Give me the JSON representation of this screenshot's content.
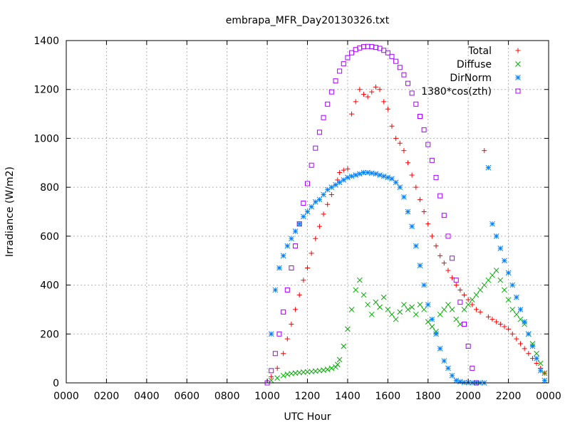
{
  "chart_data": {
    "type": "scatter",
    "title": "embrapa_MFR_Day20130326.txt",
    "xlabel": "UTC Hour",
    "ylabel": "Irradiance (W/m2)",
    "xlim": [
      0,
      24
    ],
    "ylim": [
      0,
      1400
    ],
    "x_ticks": [
      {
        "value": 0,
        "label": "0000"
      },
      {
        "value": 2,
        "label": "0200"
      },
      {
        "value": 4,
        "label": "0400"
      },
      {
        "value": 6,
        "label": "0600"
      },
      {
        "value": 8,
        "label": "0800"
      },
      {
        "value": 10,
        "label": "1000"
      },
      {
        "value": 12,
        "label": "1200"
      },
      {
        "value": 14,
        "label": "1400"
      },
      {
        "value": 16,
        "label": "1600"
      },
      {
        "value": 18,
        "label": "1800"
      },
      {
        "value": 20,
        "label": "2000"
      },
      {
        "value": 22,
        "label": "2200"
      },
      {
        "value": 24,
        "label": "0000"
      }
    ],
    "y_ticks": [
      0,
      200,
      400,
      600,
      800,
      1000,
      1200,
      1400
    ],
    "grid": true,
    "legend_position": "top-right",
    "series": [
      {
        "name": "Total",
        "marker": "plus",
        "color": "#ff0000",
        "points": [
          [
            10.2,
            25
          ],
          [
            10.5,
            60
          ],
          [
            10.8,
            120
          ],
          [
            11.0,
            180
          ],
          [
            11.2,
            240
          ],
          [
            11.4,
            300
          ],
          [
            11.6,
            360
          ],
          [
            11.8,
            420
          ],
          [
            12.0,
            470
          ],
          [
            12.2,
            530
          ],
          [
            12.4,
            590
          ],
          [
            12.6,
            640
          ],
          [
            12.8,
            690
          ],
          [
            13.0,
            730
          ],
          [
            13.2,
            770
          ],
          [
            13.4,
            810
          ],
          [
            13.5,
            830
          ],
          [
            13.6,
            860
          ],
          [
            13.8,
            870
          ],
          [
            14.0,
            875
          ],
          [
            14.2,
            1100
          ],
          [
            14.4,
            1150
          ],
          [
            14.6,
            1200
          ],
          [
            14.8,
            1180
          ],
          [
            15.0,
            1170
          ],
          [
            15.2,
            1190
          ],
          [
            15.4,
            1210
          ],
          [
            15.6,
            1200
          ],
          [
            15.8,
            1150
          ],
          [
            16.0,
            1120
          ],
          [
            16.2,
            1050
          ],
          [
            16.4,
            1000
          ],
          [
            16.6,
            980
          ],
          [
            16.8,
            950
          ],
          [
            17.0,
            900
          ],
          [
            17.2,
            850
          ],
          [
            17.4,
            800
          ],
          [
            17.6,
            750
          ],
          [
            17.8,
            700
          ],
          [
            18.0,
            650
          ],
          [
            18.2,
            600
          ],
          [
            18.4,
            560
          ],
          [
            18.6,
            520
          ],
          [
            18.8,
            490
          ],
          [
            19.0,
            460
          ],
          [
            19.2,
            430
          ],
          [
            19.4,
            400
          ],
          [
            19.6,
            380
          ],
          [
            19.8,
            360
          ],
          [
            20.0,
            340
          ],
          [
            20.2,
            320
          ],
          [
            20.4,
            300
          ],
          [
            20.6,
            290
          ],
          [
            20.8,
            950
          ],
          [
            21.0,
            270
          ],
          [
            21.2,
            260
          ],
          [
            21.4,
            250
          ],
          [
            21.6,
            240
          ],
          [
            21.8,
            230
          ],
          [
            22.0,
            220
          ],
          [
            22.2,
            200
          ],
          [
            22.4,
            180
          ],
          [
            22.6,
            160
          ],
          [
            22.8,
            140
          ],
          [
            23.0,
            120
          ],
          [
            23.2,
            100
          ],
          [
            23.4,
            80
          ],
          [
            23.6,
            60
          ],
          [
            23.8,
            40
          ]
        ]
      },
      {
        "name": "Diffuse",
        "marker": "cross",
        "color": "#00aa00",
        "points": [
          [
            10.2,
            10
          ],
          [
            10.5,
            20
          ],
          [
            10.8,
            30
          ],
          [
            11.0,
            35
          ],
          [
            11.2,
            38
          ],
          [
            11.4,
            40
          ],
          [
            11.6,
            42
          ],
          [
            11.8,
            44
          ],
          [
            12.0,
            45
          ],
          [
            12.2,
            46
          ],
          [
            12.4,
            48
          ],
          [
            12.6,
            50
          ],
          [
            12.8,
            52
          ],
          [
            13.0,
            55
          ],
          [
            13.2,
            60
          ],
          [
            13.4,
            65
          ],
          [
            13.5,
            75
          ],
          [
            13.6,
            95
          ],
          [
            13.8,
            150
          ],
          [
            14.0,
            220
          ],
          [
            14.2,
            300
          ],
          [
            14.4,
            380
          ],
          [
            14.6,
            420
          ],
          [
            14.8,
            360
          ],
          [
            15.0,
            320
          ],
          [
            15.2,
            280
          ],
          [
            15.4,
            330
          ],
          [
            15.6,
            310
          ],
          [
            15.8,
            350
          ],
          [
            16.0,
            300
          ],
          [
            16.2,
            280
          ],
          [
            16.4,
            260
          ],
          [
            16.6,
            290
          ],
          [
            16.8,
            320
          ],
          [
            17.0,
            300
          ],
          [
            17.2,
            310
          ],
          [
            17.4,
            280
          ],
          [
            17.6,
            320
          ],
          [
            17.8,
            300
          ],
          [
            18.0,
            250
          ],
          [
            18.2,
            230
          ],
          [
            18.4,
            210
          ],
          [
            18.6,
            280
          ],
          [
            18.8,
            300
          ],
          [
            19.0,
            320
          ],
          [
            19.2,
            300
          ],
          [
            19.4,
            260
          ],
          [
            19.6,
            240
          ],
          [
            19.8,
            300
          ],
          [
            20.0,
            320
          ],
          [
            20.2,
            340
          ],
          [
            20.4,
            360
          ],
          [
            20.6,
            380
          ],
          [
            20.8,
            400
          ],
          [
            21.0,
            420
          ],
          [
            21.2,
            440
          ],
          [
            21.4,
            460
          ],
          [
            21.6,
            420
          ],
          [
            21.8,
            380
          ],
          [
            22.0,
            340
          ],
          [
            22.2,
            300
          ],
          [
            22.4,
            280
          ],
          [
            22.6,
            260
          ],
          [
            22.8,
            240
          ],
          [
            23.0,
            200
          ],
          [
            23.2,
            160
          ],
          [
            23.4,
            120
          ],
          [
            23.6,
            80
          ],
          [
            23.8,
            40
          ]
        ]
      },
      {
        "name": "DirNorm",
        "marker": "star",
        "color": "#0080ff",
        "points": [
          [
            10.2,
            200
          ],
          [
            10.4,
            380
          ],
          [
            10.6,
            470
          ],
          [
            10.8,
            520
          ],
          [
            11.0,
            560
          ],
          [
            11.2,
            590
          ],
          [
            11.4,
            620
          ],
          [
            11.6,
            650
          ],
          [
            11.8,
            680
          ],
          [
            12.0,
            700
          ],
          [
            12.2,
            720
          ],
          [
            12.4,
            740
          ],
          [
            12.6,
            750
          ],
          [
            12.8,
            770
          ],
          [
            13.0,
            790
          ],
          [
            13.2,
            800
          ],
          [
            13.4,
            810
          ],
          [
            13.6,
            820
          ],
          [
            13.8,
            830
          ],
          [
            14.0,
            840
          ],
          [
            14.2,
            845
          ],
          [
            14.4,
            850
          ],
          [
            14.6,
            855
          ],
          [
            14.8,
            860
          ],
          [
            15.0,
            860
          ],
          [
            15.2,
            858
          ],
          [
            15.4,
            855
          ],
          [
            15.6,
            850
          ],
          [
            15.8,
            845
          ],
          [
            16.0,
            840
          ],
          [
            16.2,
            835
          ],
          [
            16.4,
            820
          ],
          [
            16.6,
            800
          ],
          [
            16.8,
            760
          ],
          [
            17.0,
            700
          ],
          [
            17.2,
            640
          ],
          [
            17.4,
            560
          ],
          [
            17.6,
            480
          ],
          [
            17.8,
            400
          ],
          [
            18.0,
            320
          ],
          [
            18.2,
            260
          ],
          [
            18.4,
            200
          ],
          [
            18.6,
            140
          ],
          [
            18.8,
            90
          ],
          [
            19.0,
            60
          ],
          [
            19.2,
            30
          ],
          [
            19.4,
            10
          ],
          [
            19.6,
            5
          ],
          [
            19.8,
            2
          ],
          [
            20.0,
            1
          ],
          [
            20.2,
            0.5
          ],
          [
            20.4,
            0.3
          ],
          [
            20.6,
            0.2
          ],
          [
            20.8,
            0.1
          ],
          [
            21.0,
            880
          ],
          [
            21.2,
            650
          ],
          [
            21.4,
            600
          ],
          [
            21.6,
            550
          ],
          [
            21.8,
            500
          ],
          [
            22.0,
            450
          ],
          [
            22.2,
            400
          ],
          [
            22.4,
            350
          ],
          [
            22.6,
            300
          ],
          [
            22.8,
            250
          ],
          [
            23.0,
            200
          ],
          [
            23.2,
            150
          ],
          [
            23.4,
            100
          ],
          [
            23.6,
            50
          ],
          [
            23.8,
            10
          ]
        ]
      },
      {
        "name": "1380*cos(zth)",
        "marker": "square",
        "color": "#aa00ff",
        "points": [
          [
            10.0,
            0
          ],
          [
            10.2,
            50
          ],
          [
            10.4,
            120
          ],
          [
            10.6,
            200
          ],
          [
            10.8,
            290
          ],
          [
            11.0,
            380
          ],
          [
            11.2,
            470
          ],
          [
            11.4,
            560
          ],
          [
            11.6,
            650
          ],
          [
            11.8,
            735
          ],
          [
            12.0,
            815
          ],
          [
            12.2,
            890
          ],
          [
            12.4,
            960
          ],
          [
            12.6,
            1025
          ],
          [
            12.8,
            1085
          ],
          [
            13.0,
            1140
          ],
          [
            13.2,
            1190
          ],
          [
            13.4,
            1235
          ],
          [
            13.6,
            1275
          ],
          [
            13.8,
            1305
          ],
          [
            14.0,
            1330
          ],
          [
            14.2,
            1350
          ],
          [
            14.4,
            1363
          ],
          [
            14.6,
            1370
          ],
          [
            14.8,
            1375
          ],
          [
            15.0,
            1376
          ],
          [
            15.2,
            1375
          ],
          [
            15.4,
            1372
          ],
          [
            15.6,
            1368
          ],
          [
            15.8,
            1360
          ],
          [
            16.0,
            1350
          ],
          [
            16.2,
            1335
          ],
          [
            16.4,
            1315
          ],
          [
            16.6,
            1290
          ],
          [
            16.8,
            1260
          ],
          [
            17.0,
            1225
          ],
          [
            17.2,
            1185
          ],
          [
            17.4,
            1140
          ],
          [
            17.6,
            1090
          ],
          [
            17.8,
            1035
          ],
          [
            18.0,
            975
          ],
          [
            18.2,
            910
          ],
          [
            18.4,
            840
          ],
          [
            18.6,
            765
          ],
          [
            18.8,
            685
          ],
          [
            19.0,
            600
          ],
          [
            19.2,
            510
          ],
          [
            19.4,
            420
          ],
          [
            19.6,
            330
          ],
          [
            19.8,
            240
          ],
          [
            20.0,
            150
          ],
          [
            20.2,
            60
          ],
          [
            20.4,
            0
          ]
        ]
      }
    ]
  }
}
